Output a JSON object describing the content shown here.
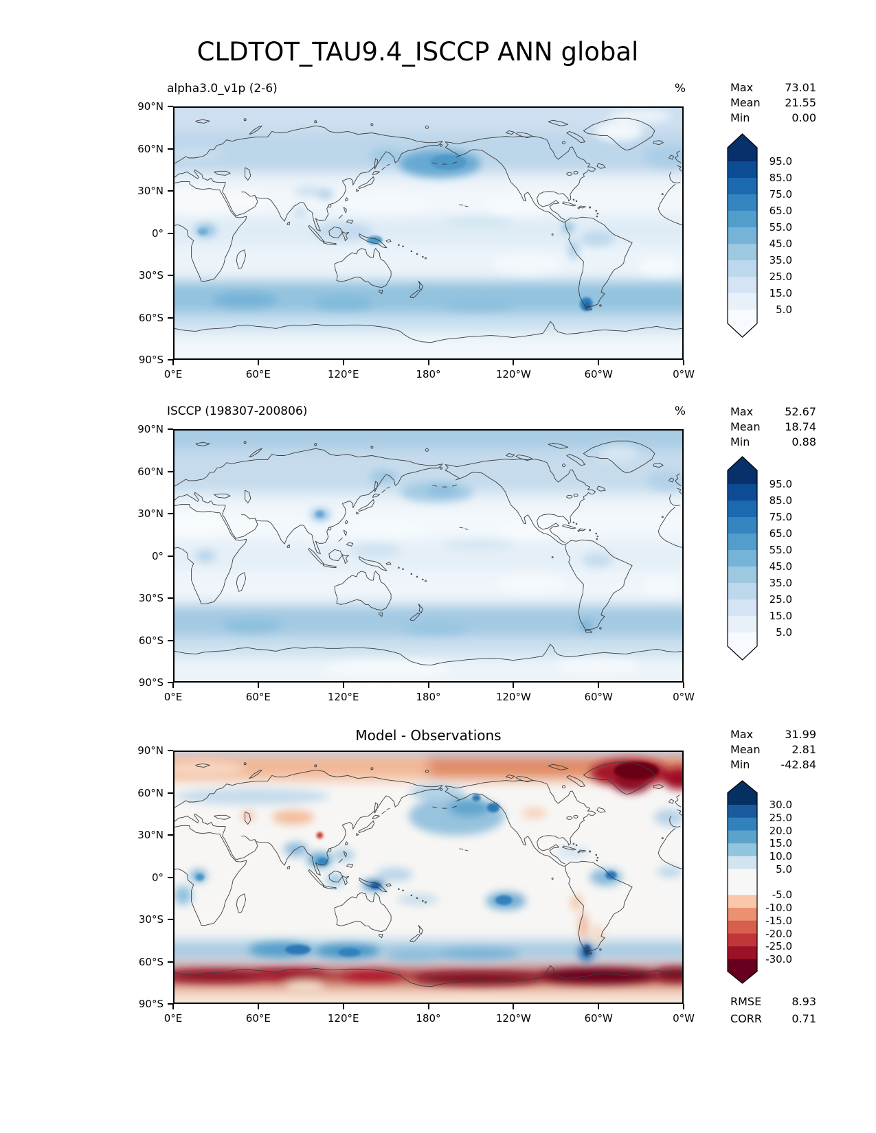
{
  "title": "CLDTOT_TAU9.4_ISCCP ANN global",
  "axes": {
    "lon_ticks": [
      "0°E",
      "60°E",
      "120°E",
      "180°",
      "120°W",
      "60°W",
      "0°W"
    ],
    "lat_ticks": [
      "90°N",
      "60°N",
      "30°N",
      "0°",
      "30°S",
      "60°S",
      "90°S"
    ]
  },
  "panels": [
    {
      "subtitle": "alpha3.0_v1p (2-6)",
      "unit": "%",
      "stats": [
        {
          "label": "Max",
          "value": "73.01"
        },
        {
          "label": "Mean",
          "value": "21.55"
        },
        {
          "label": "Min",
          "value": "0.00"
        }
      ],
      "colorbar": {
        "ticks": [
          "95.0",
          "85.0",
          "75.0",
          "65.0",
          "55.0",
          "45.0",
          "35.0",
          "25.0",
          "15.0",
          "5.0"
        ],
        "colors": [
          "#08306b",
          "#0b4c94",
          "#1b69af",
          "#3585c0",
          "#529dcc",
          "#75b4d8",
          "#9cc8e0",
          "#bdd7ec",
          "#d4e4f4",
          "#e8f1fa",
          "#f7fbff"
        ]
      }
    },
    {
      "subtitle": "ISCCP (198307-200806)",
      "unit": "%",
      "stats": [
        {
          "label": "Max",
          "value": "52.67"
        },
        {
          "label": "Mean",
          "value": "18.74"
        },
        {
          "label": "Min",
          "value": "0.88"
        }
      ],
      "colorbar": {
        "ticks": [
          "95.0",
          "85.0",
          "75.0",
          "65.0",
          "55.0",
          "45.0",
          "35.0",
          "25.0",
          "15.0",
          "5.0"
        ],
        "colors": [
          "#08306b",
          "#0b4c94",
          "#1b69af",
          "#3585c0",
          "#529dcc",
          "#75b4d8",
          "#9cc8e0",
          "#bdd7ec",
          "#d4e4f4",
          "#e8f1fa",
          "#f7fbff"
        ]
      }
    },
    {
      "subtitle": "Model - Observations",
      "unit": "",
      "stats": [
        {
          "label": "Max",
          "value": "31.99"
        },
        {
          "label": "Mean",
          "value": "2.81"
        },
        {
          "label": "Min",
          "value": "-42.84"
        }
      ],
      "colorbar": {
        "ticks": [
          "30.0",
          "25.0",
          "20.0",
          "15.0",
          "10.0",
          "5.0",
          "-5.0",
          "-10.0",
          "-15.0",
          "-20.0",
          "-25.0",
          "-30.0"
        ],
        "colors": [
          "#053061",
          "#1b5a9e",
          "#3181bd",
          "#5ba3cb",
          "#92c5de",
          "#d1e5f0",
          "#f7f7f7",
          "#f9c7ac",
          "#eb9172",
          "#d6604d",
          "#c13639",
          "#9b1127",
          "#67001f"
        ]
      },
      "extra_stats": [
        {
          "label": "RMSE",
          "value": "8.93"
        },
        {
          "label": "CORR",
          "value": "0.71"
        }
      ]
    }
  ],
  "chart_data": {
    "type": "heatmap",
    "subtype": "filled-contour global maps, equirectangular projection, longitude 0°E→360°E left to right, latitude 90°N→90°S top to bottom",
    "maps": [
      {
        "title": "alpha3.0_v1p (2-6)",
        "units": "%",
        "colormap": "Blues",
        "contour_levels": [
          5,
          15,
          25,
          35,
          45,
          55,
          65,
          75,
          85,
          95
        ],
        "max": 73.01,
        "mean": 21.55,
        "min": 0.0
      },
      {
        "title": "ISCCP (198307-200806)",
        "units": "%",
        "colormap": "Blues",
        "contour_levels": [
          5,
          15,
          25,
          35,
          45,
          55,
          65,
          75,
          85,
          95
        ],
        "max": 52.67,
        "mean": 18.74,
        "min": 0.88
      },
      {
        "title": "Model - Observations",
        "units": "%",
        "colormap": "RdBu",
        "contour_levels": [
          -30,
          -25,
          -20,
          -15,
          -10,
          -5,
          5,
          10,
          15,
          20,
          25,
          30
        ],
        "max": 31.99,
        "mean": 2.81,
        "min": -42.84,
        "rmse": 8.93,
        "corr": 0.71
      }
    ],
    "x_ticks": [
      "0°E",
      "60°E",
      "120°E",
      "180°",
      "120°W",
      "60°W",
      "0°W"
    ],
    "y_ticks": [
      "90°N",
      "60°N",
      "30°N",
      "0°",
      "30°S",
      "60°S",
      "90°S"
    ]
  }
}
